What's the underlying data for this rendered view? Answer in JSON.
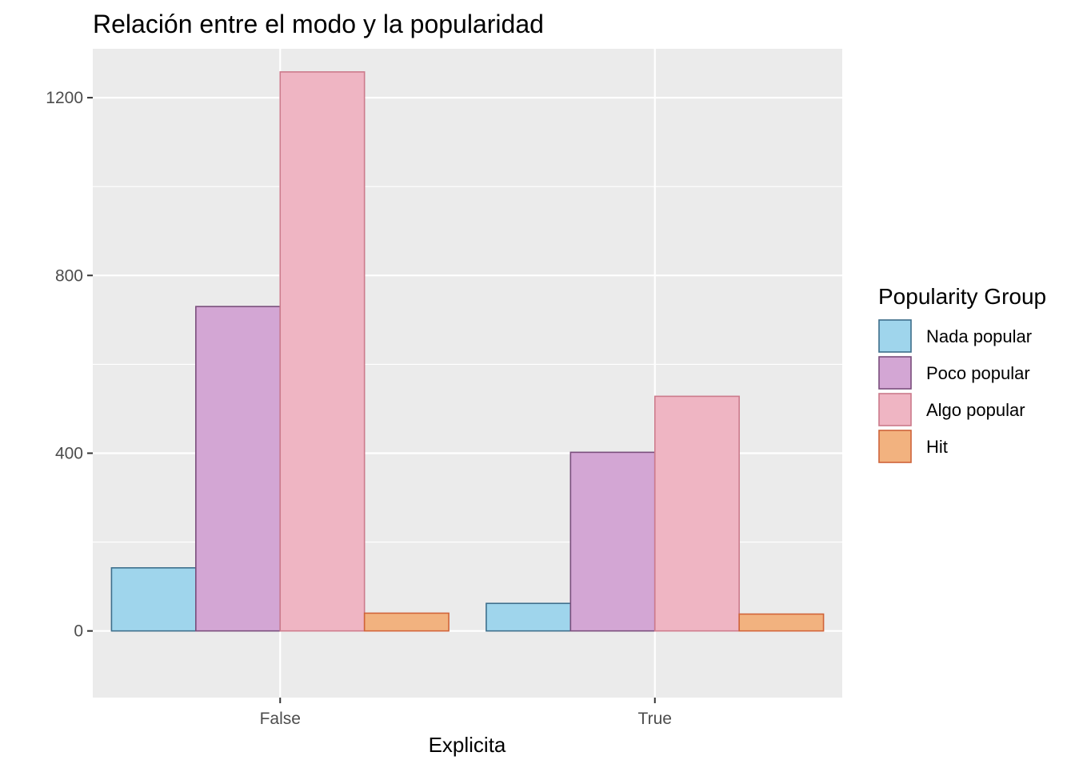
{
  "chart_data": {
    "type": "bar",
    "title": "Relación entre el modo y la popularidad",
    "xlabel": "Explicita",
    "ylabel": "",
    "categories": [
      "False",
      "True"
    ],
    "ylim": [
      -150,
      1310
    ],
    "yticks": [
      0,
      400,
      800,
      1200
    ],
    "grid": true,
    "legend": {
      "title": "Popularity Group",
      "position": "right"
    },
    "series": [
      {
        "name": "Nada popular",
        "values": [
          142,
          62
        ],
        "fill": "#9fd5ec",
        "stroke": "#3e6f8c"
      },
      {
        "name": "Poco popular",
        "values": [
          730,
          402
        ],
        "fill": "#d3a6d4",
        "stroke": "#7a4e7c"
      },
      {
        "name": "Algo popular",
        "values": [
          1258,
          528
        ],
        "fill": "#efb5c3",
        "stroke": "#cc7b8c"
      },
      {
        "name": "Hit",
        "values": [
          40,
          38
        ],
        "fill": "#f2b27f",
        "stroke": "#d0643a"
      }
    ],
    "colors": {
      "panel_bg": "#ebebeb",
      "grid": "#ffffff",
      "tick": "#333333"
    }
  }
}
